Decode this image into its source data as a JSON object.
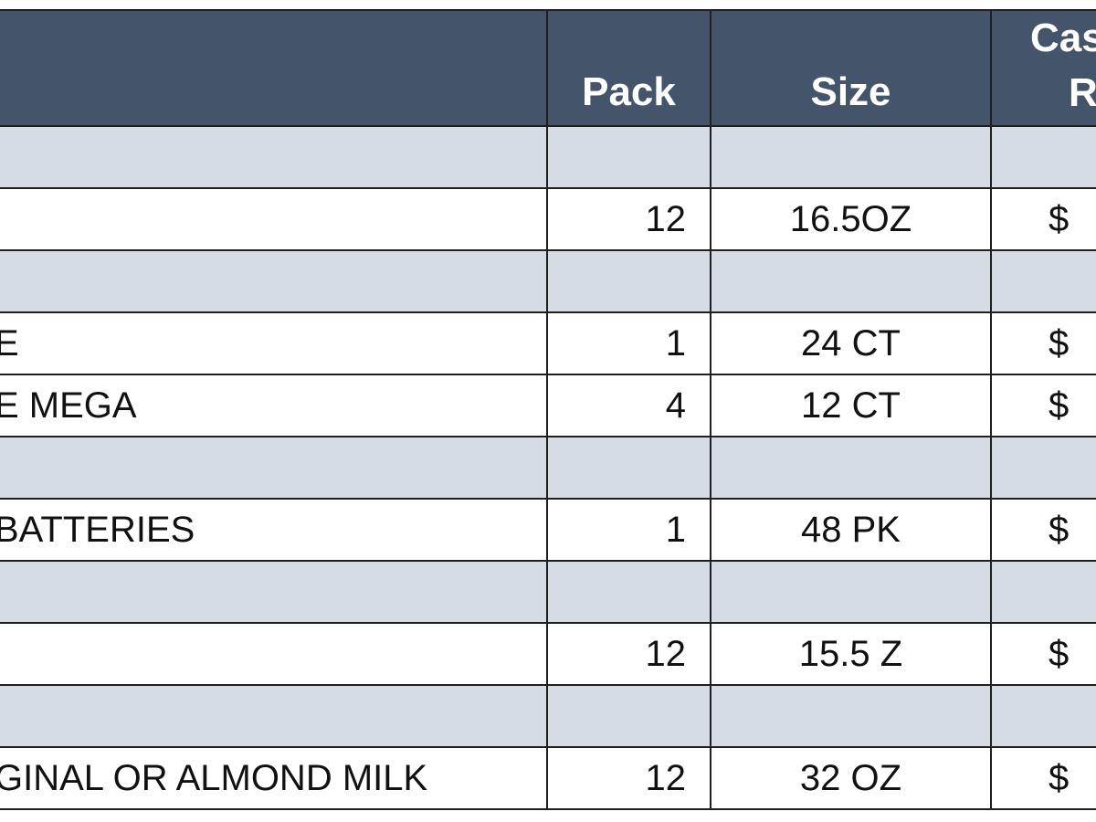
{
  "header": {
    "description": "",
    "pack": "Pack",
    "size": "Size",
    "case_line1": "Cas",
    "case_line2": "R"
  },
  "rows": [
    {
      "type": "section",
      "description": "",
      "pack": "",
      "size": "",
      "case": ""
    },
    {
      "type": "item",
      "description": "",
      "pack": "12",
      "size": "16.5OZ",
      "case": "$"
    },
    {
      "type": "section",
      "description": "",
      "pack": "",
      "size": "",
      "case": ""
    },
    {
      "type": "item",
      "description": "E",
      "pack": "1",
      "size": "24 CT",
      "case": "$"
    },
    {
      "type": "item",
      "description": "E MEGA",
      "pack": "4",
      "size": "12 CT",
      "case": "$"
    },
    {
      "type": "section",
      "description": "",
      "pack": "",
      "size": "",
      "case": ""
    },
    {
      "type": "item",
      "description": "BATTERIES",
      "pack": "1",
      "size": "48 PK",
      "case": "$"
    },
    {
      "type": "section",
      "description": "",
      "pack": "",
      "size": "",
      "case": ""
    },
    {
      "type": "item",
      "description": "",
      "pack": "12",
      "size": "15.5 Z",
      "case": "$"
    },
    {
      "type": "section",
      "description": "",
      "pack": "",
      "size": "",
      "case": ""
    },
    {
      "type": "item",
      "description": "GINAL OR ALMOND MILK",
      "pack": "12",
      "size": "32 OZ",
      "case": "$"
    }
  ],
  "colors": {
    "header_bg": "#44546a",
    "header_text": "#ffffff",
    "section_bg": "#d6dce4",
    "item_bg": "#ffffff",
    "border": "#1f1f1f"
  }
}
